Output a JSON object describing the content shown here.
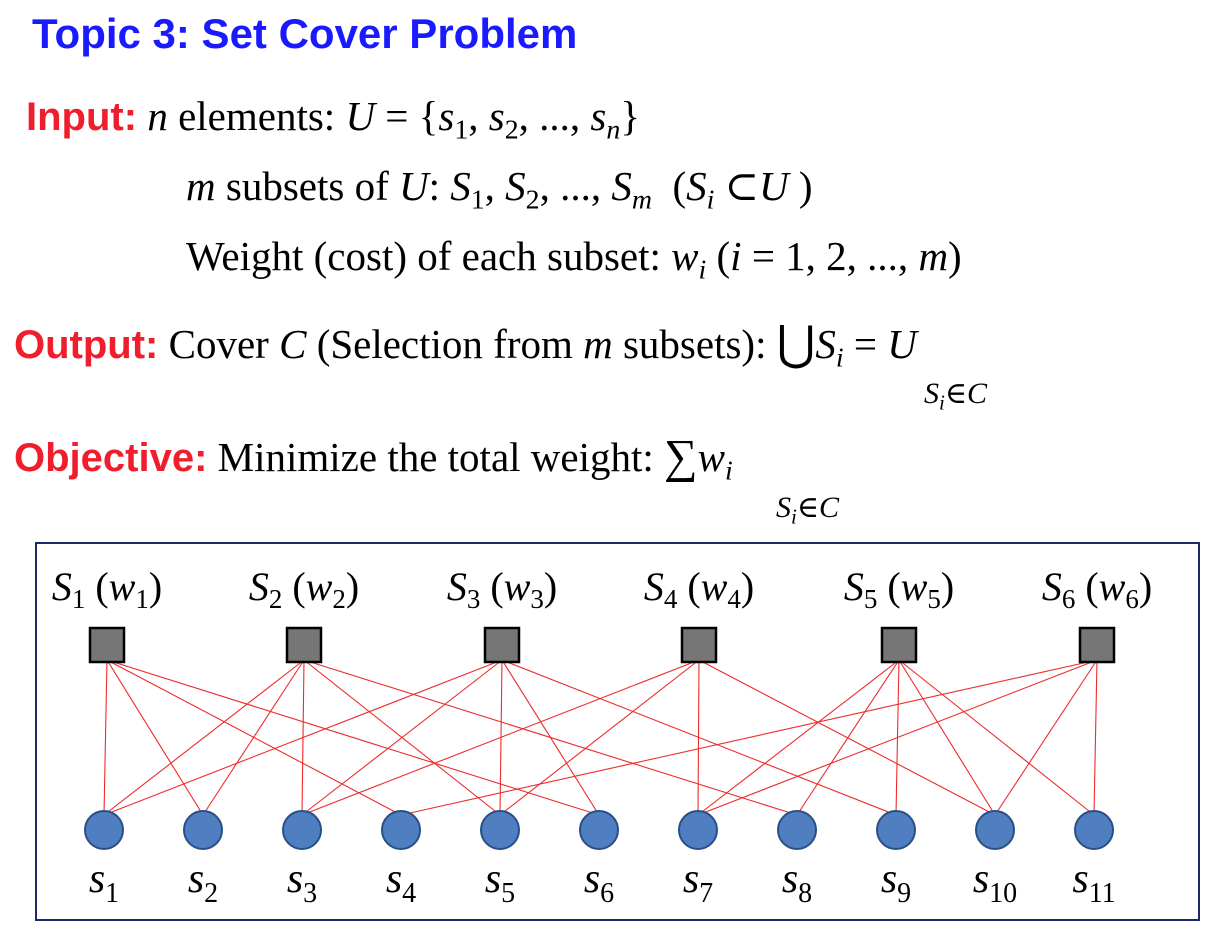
{
  "title": "Topic 3: Set Cover Problem",
  "input": {
    "label": "Input:",
    "line1": {
      "n": "n",
      "elements_text": " elements: ",
      "U": "U",
      "eq": " = {",
      "items": [
        "s",
        "1",
        ", ",
        "s",
        "2",
        ", ..., ",
        "s",
        "n",
        "}"
      ]
    },
    "line2": {
      "m": "m",
      "text": " subsets of ",
      "U": "U",
      "colon": ": ",
      "S": "S",
      "list": "1, 2, ..., m",
      "paren": "(S",
      "i": "i",
      "subset": " ⊂ U )"
    },
    "line3": {
      "text": "Weight (cost) of each subset: ",
      "w": "w",
      "i": "i",
      "range": " (i = 1, 2, ..., m)"
    }
  },
  "output": {
    "label": "Output:",
    "text1": " Cover ",
    "C": "C",
    "text2": " (Selection from ",
    "m": "m",
    "text3": " subsets): ",
    "union": "⋃",
    "S": "S",
    "i": "i",
    "eq": " = U",
    "under": "S",
    "under_i": "i",
    "under_rest": "∈C"
  },
  "objective": {
    "label": "Objective:",
    "text": " Minimize the total weight: ",
    "sum": "∑",
    "w": "w",
    "i": "i",
    "under": "S",
    "under_i": "i",
    "under_rest": "∈C"
  },
  "diagram": {
    "subsets": [
      {
        "name": "S",
        "index": "1",
        "weight": "w",
        "windex": "1"
      },
      {
        "name": "S",
        "index": "2",
        "weight": "w",
        "windex": "2"
      },
      {
        "name": "S",
        "index": "3",
        "weight": "w",
        "windex": "3"
      },
      {
        "name": "S",
        "index": "4",
        "weight": "w",
        "windex": "4"
      },
      {
        "name": "S",
        "index": "5",
        "weight": "w",
        "windex": "5"
      },
      {
        "name": "S",
        "index": "6",
        "weight": "w",
        "windex": "6"
      }
    ],
    "elements": [
      {
        "name": "s",
        "index": "1"
      },
      {
        "name": "s",
        "index": "2"
      },
      {
        "name": "s",
        "index": "3"
      },
      {
        "name": "s",
        "index": "4"
      },
      {
        "name": "s",
        "index": "5"
      },
      {
        "name": "s",
        "index": "6"
      },
      {
        "name": "s",
        "index": "7"
      },
      {
        "name": "s",
        "index": "8"
      },
      {
        "name": "s",
        "index": "9"
      },
      {
        "name": "s",
        "index": "10"
      },
      {
        "name": "s",
        "index": "11"
      }
    ],
    "edges": [
      [
        1,
        1
      ],
      [
        1,
        2
      ],
      [
        1,
        4
      ],
      [
        1,
        6
      ],
      [
        2,
        1
      ],
      [
        2,
        2
      ],
      [
        2,
        3
      ],
      [
        2,
        5
      ],
      [
        2,
        8
      ],
      [
        3,
        1
      ],
      [
        3,
        3
      ],
      [
        3,
        5
      ],
      [
        3,
        6
      ],
      [
        3,
        9
      ],
      [
        4,
        3
      ],
      [
        4,
        5
      ],
      [
        4,
        7
      ],
      [
        4,
        10
      ],
      [
        5,
        7
      ],
      [
        5,
        8
      ],
      [
        5,
        9
      ],
      [
        5,
        10
      ],
      [
        5,
        11
      ],
      [
        6,
        4
      ],
      [
        6,
        7
      ],
      [
        6,
        10
      ],
      [
        6,
        11
      ]
    ],
    "colors": {
      "edge": "#ee2b2b",
      "square": "#767676",
      "circle": "#4f7fc0",
      "circle_stroke": "#2a4f86",
      "frame": "#1b2a6b"
    }
  }
}
